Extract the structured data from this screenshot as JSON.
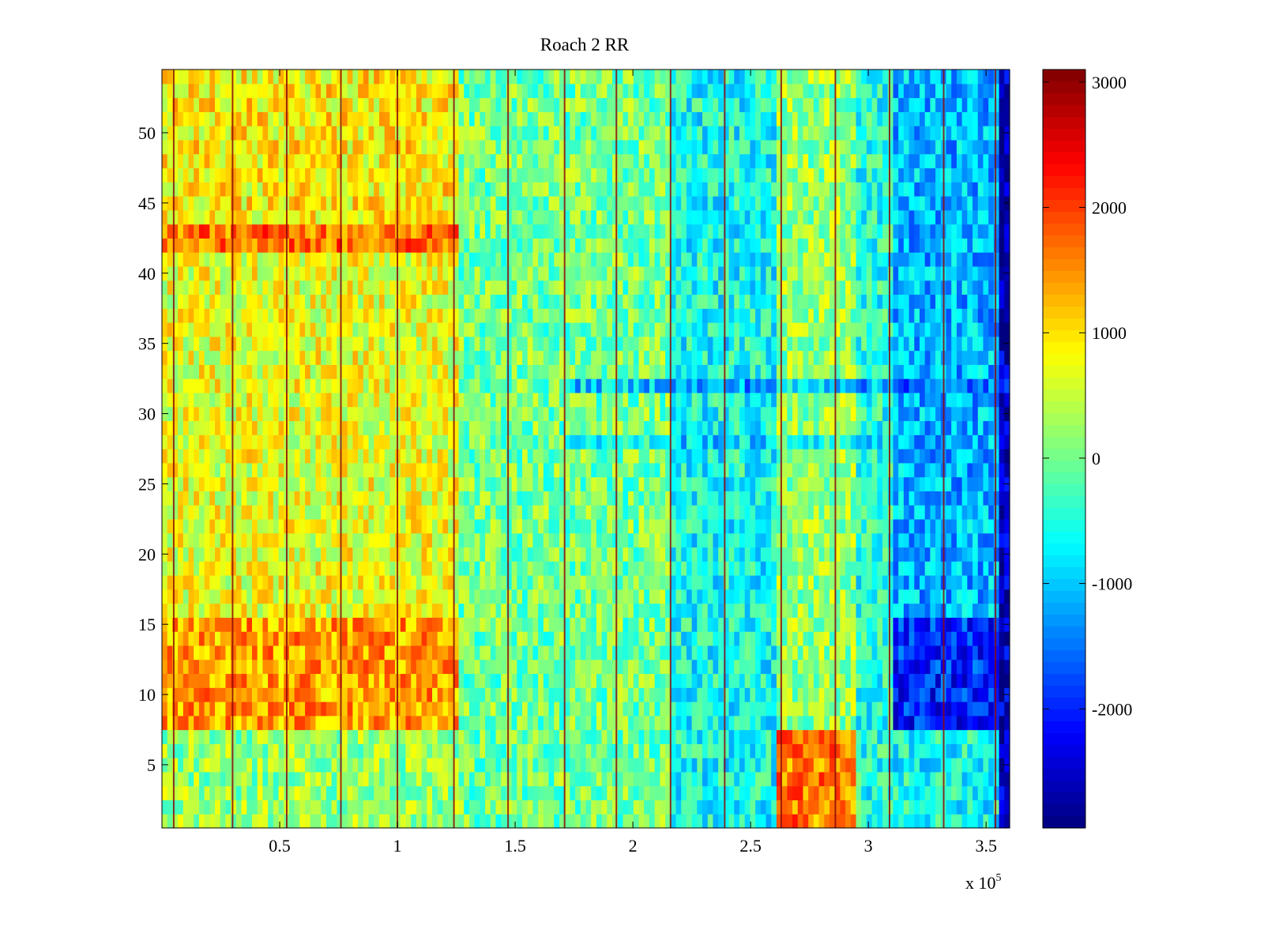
{
  "chart_data": {
    "type": "heatmap",
    "title": "Roach 2 RR",
    "xlabel": "",
    "ylabel": "",
    "x_exponent_label": "x 10",
    "x_exponent_power": "5",
    "xlim": [
      0,
      3.6
    ],
    "ylim": [
      0.5,
      54.5
    ],
    "x_ticks": [
      0.5,
      1,
      1.5,
      2,
      2.5,
      3,
      3.5
    ],
    "x_tick_labels": [
      "0.5",
      "1",
      "1.5",
      "2",
      "2.5",
      "3",
      "3.5"
    ],
    "y_ticks": [
      5,
      10,
      15,
      20,
      25,
      30,
      35,
      40,
      45,
      50
    ],
    "y_tick_labels": [
      "5",
      "10",
      "15",
      "20",
      "25",
      "30",
      "35",
      "40",
      "45",
      "50"
    ],
    "rows": 54,
    "colormap": "jet",
    "clim": [
      -2950,
      3100
    ],
    "colorbar_ticks": [
      3000,
      2000,
      1000,
      0,
      -1000,
      -2000
    ],
    "colorbar_tick_labels": [
      "3000",
      "2000",
      "1000",
      "0",
      "-1000",
      "-2000"
    ],
    "vertical_stripe_x": [
      0.05,
      0.3,
      0.53,
      0.76,
      1.0,
      1.24,
      1.47,
      1.71,
      1.93,
      2.16,
      2.39,
      2.63,
      2.86,
      3.09,
      3.32,
      3.54
    ],
    "regions": [
      {
        "x": [
          0.0,
          1.25
        ],
        "y": [
          8,
          16
        ],
        "value": 1400
      },
      {
        "x": [
          0.0,
          1.25
        ],
        "y": [
          16,
          42
        ],
        "value": 700
      },
      {
        "x": [
          0.0,
          1.25
        ],
        "y": [
          42,
          44
        ],
        "value": 1700
      },
      {
        "x": [
          0.0,
          1.25
        ],
        "y": [
          44,
          55
        ],
        "value": 900
      },
      {
        "x": [
          0.0,
          1.25
        ],
        "y": [
          0,
          8
        ],
        "value": 200
      },
      {
        "x": [
          1.25,
          2.15
        ],
        "y": [
          0,
          55
        ],
        "value": 0
      },
      {
        "x": [
          2.15,
          2.6
        ],
        "y": [
          0,
          55
        ],
        "value": -600
      },
      {
        "x": [
          2.6,
          2.95
        ],
        "y": [
          0,
          8
        ],
        "value": 1600
      },
      {
        "x": [
          2.6,
          2.95
        ],
        "y": [
          8,
          55
        ],
        "value": 200
      },
      {
        "x": [
          2.95,
          3.1
        ],
        "y": [
          0,
          55
        ],
        "value": -500
      },
      {
        "x": [
          3.1,
          3.55
        ],
        "y": [
          8,
          16
        ],
        "value": -2000
      },
      {
        "x": [
          3.1,
          3.55
        ],
        "y": [
          16,
          55
        ],
        "value": -1100
      },
      {
        "x": [
          3.1,
          3.55
        ],
        "y": [
          0,
          8
        ],
        "value": -600
      },
      {
        "x": [
          3.55,
          3.6
        ],
        "y": [
          0,
          55
        ],
        "value": -2600
      }
    ],
    "bands": [
      {
        "y": 28,
        "value": -600
      },
      {
        "y": 32,
        "value": -1300
      }
    ]
  }
}
